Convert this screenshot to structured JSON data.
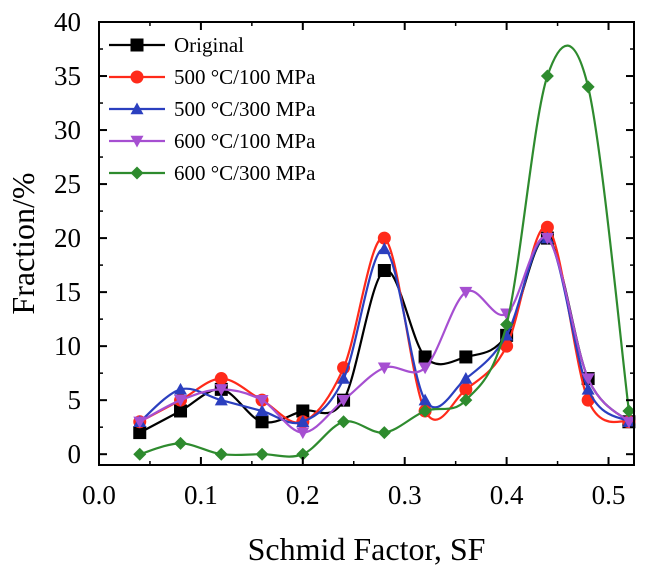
{
  "chart_data": {
    "type": "line",
    "title": "",
    "xlabel": "Schmid Factor, SF",
    "ylabel": "Fraction/%",
    "xlim": [
      0.0,
      0.525
    ],
    "ylim": [
      -1,
      40
    ],
    "x_ticks": [
      0.0,
      0.1,
      0.2,
      0.3,
      0.4,
      0.5
    ],
    "x_tick_labels": [
      "0.0",
      "0.1",
      "0.2",
      "0.3",
      "0.4",
      "0.5"
    ],
    "y_ticks": [
      0,
      5,
      10,
      15,
      20,
      25,
      30,
      35,
      40
    ],
    "y_tick_labels": [
      "0",
      "5",
      "10",
      "15",
      "20",
      "25",
      "30",
      "35",
      "40"
    ],
    "grid": false,
    "legend_position": "top-left",
    "x": [
      0.04,
      0.08,
      0.12,
      0.16,
      0.2,
      0.24,
      0.28,
      0.32,
      0.36,
      0.4,
      0.44,
      0.48,
      0.52
    ],
    "series": [
      {
        "name": "Original",
        "color": "#000000",
        "marker": "square",
        "values": [
          2,
          4,
          6,
          3,
          4,
          5,
          17,
          9,
          9,
          11,
          20,
          7,
          3
        ]
      },
      {
        "name": "500 °C/100 MPa",
        "color": "#ff2a1a",
        "marker": "circle",
        "values": [
          3,
          5,
          7,
          5,
          3,
          8,
          20,
          4,
          6,
          10,
          21,
          5,
          3
        ]
      },
      {
        "name": "500 °C/300 MPa",
        "color": "#2b3fbf",
        "marker": "triangle-up",
        "values": [
          3,
          6,
          5,
          4,
          3,
          7,
          19,
          5,
          7,
          11,
          20,
          6,
          3
        ]
      },
      {
        "name": "600 °C/100 MPa",
        "color": "#a64fd1",
        "marker": "triangle-down",
        "values": [
          3,
          5,
          6,
          5,
          2,
          5,
          8,
          8,
          15,
          13,
          20,
          7,
          3
        ]
      },
      {
        "name": "600 °C/300 MPa",
        "color": "#2e8b2e",
        "marker": "diamond",
        "values": [
          0,
          1,
          0,
          0,
          0,
          3,
          2,
          4,
          5,
          12,
          35,
          34,
          4
        ]
      }
    ]
  }
}
